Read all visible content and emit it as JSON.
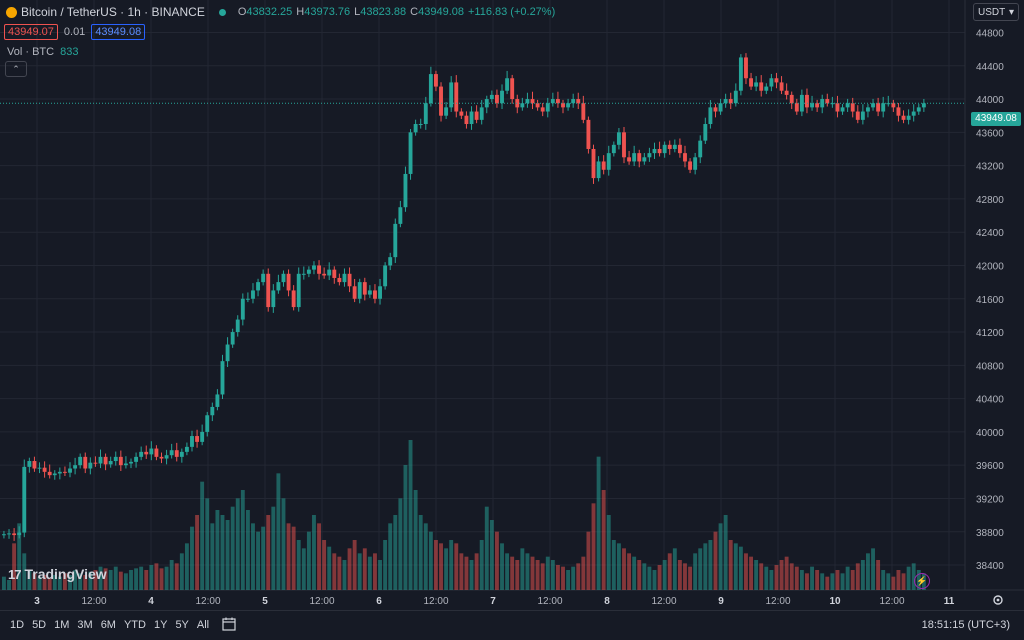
{
  "header": {
    "symbol": "Bitcoin / TetherUS · 1h · BINANCE",
    "o_label": "O",
    "o_value": "43832.25",
    "h_label": "H",
    "h_value": "43973.76",
    "l_label": "L",
    "l_value": "43823.88",
    "c_label": "C",
    "c_value": "43949.08",
    "change": "+116.83 (+0.27%)"
  },
  "trade": {
    "sell": "43949.07",
    "spread": "0.01",
    "buy": "43949.08"
  },
  "volume": {
    "label": "Vol · BTC",
    "value": "833"
  },
  "currency": {
    "label": "USDT",
    "caret": "▾"
  },
  "last_price": "43949.08",
  "branding": {
    "mark": "17",
    "name": "TradingView"
  },
  "ranges": [
    "1D",
    "5D",
    "1M",
    "3M",
    "6M",
    "YTD",
    "1Y",
    "5Y",
    "All"
  ],
  "clock": "18:51:15 (UTC+3)",
  "colors": {
    "up": "#26a69a",
    "down": "#ef5350",
    "bg": "#161a25",
    "grid": "#232733"
  },
  "chart_data": {
    "type": "candlestick",
    "y_ticks": [
      38400,
      38800,
      39200,
      39600,
      40000,
      40400,
      40800,
      41200,
      41600,
      42000,
      42400,
      42800,
      43200,
      43600,
      44000,
      44400,
      44800
    ],
    "ylim": [
      38100,
      44950
    ],
    "x_ticks": [
      "3",
      "12:00",
      "4",
      "12:00",
      "5",
      "12:00",
      "6",
      "12:00",
      "7",
      "12:00",
      "8",
      "12:00",
      "9",
      "12:00",
      "10",
      "12:00",
      "11"
    ],
    "close_series": [
      38770,
      38780,
      38760,
      38790,
      39580,
      39650,
      39560,
      39570,
      39520,
      39480,
      39500,
      39520,
      39510,
      39560,
      39600,
      39700,
      39560,
      39630,
      39620,
      39700,
      39610,
      39650,
      39700,
      39600,
      39620,
      39640,
      39700,
      39760,
      39730,
      39800,
      39700,
      39680,
      39720,
      39780,
      39700,
      39760,
      39820,
      39950,
      39880,
      40000,
      40200,
      40300,
      40450,
      40850,
      41050,
      41200,
      41350,
      41600,
      41600,
      41700,
      41800,
      41900,
      41500,
      41700,
      41800,
      41900,
      41700,
      41500,
      41900,
      41900,
      41950,
      42000,
      41900,
      41880,
      41950,
      41850,
      41800,
      41900,
      41750,
      41600,
      41800,
      41650,
      41700,
      41600,
      41750,
      42000,
      42100,
      42500,
      42700,
      43100,
      43600,
      43700,
      43700,
      43950,
      44300,
      44150,
      43800,
      43900,
      44200,
      43850,
      43800,
      43700,
      43850,
      43750,
      43900,
      44000,
      44050,
      43950,
      44100,
      44250,
      44000,
      43900,
      43950,
      44000,
      43950,
      43900,
      43850,
      43950,
      44000,
      43950,
      43900,
      43950,
      44000,
      43950,
      43750,
      43400,
      43050,
      43250,
      43150,
      43350,
      43450,
      43600,
      43300,
      43250,
      43350,
      43250,
      43300,
      43350,
      43400,
      43350,
      43450,
      43400,
      43450,
      43350,
      43250,
      43150,
      43300,
      43500,
      43700,
      43900,
      43850,
      43950,
      44000,
      43950,
      44100,
      44500,
      44250,
      44150,
      44200,
      44100,
      44150,
      44250,
      44200,
      44100,
      44050,
      43950,
      43850,
      44050,
      43900,
      43950,
      43900,
      44000,
      43950,
      43950,
      43850,
      43900,
      43950,
      43850,
      43750,
      43850,
      43900,
      43950,
      43850,
      43950,
      43950,
      43900,
      43800,
      43750,
      43800,
      43850,
      43900,
      43949
    ],
    "volume_series": [
      8,
      6,
      28,
      40,
      22,
      12,
      10,
      8,
      9,
      7,
      9,
      8,
      10,
      9,
      12,
      10,
      9,
      11,
      12,
      14,
      13,
      12,
      14,
      11,
      10,
      12,
      13,
      14,
      12,
      15,
      16,
      13,
      14,
      18,
      16,
      22,
      28,
      38,
      45,
      65,
      55,
      40,
      48,
      45,
      42,
      50,
      55,
      60,
      48,
      40,
      35,
      38,
      45,
      50,
      70,
      55,
      40,
      38,
      30,
      25,
      35,
      45,
      40,
      30,
      26,
      22,
      20,
      18,
      25,
      30,
      22,
      25,
      20,
      22,
      18,
      30,
      40,
      45,
      55,
      75,
      90,
      60,
      45,
      40,
      35,
      30,
      28,
      25,
      30,
      28,
      22,
      20,
      18,
      22,
      30,
      50,
      42,
      35,
      28,
      22,
      20,
      18,
      25,
      22,
      20,
      18,
      16,
      20,
      18,
      15,
      14,
      12,
      14,
      16,
      20,
      35,
      52,
      80,
      60,
      45,
      30,
      28,
      25,
      22,
      20,
      18,
      16,
      14,
      12,
      15,
      18,
      22,
      25,
      18,
      16,
      14,
      22,
      25,
      28,
      30,
      35,
      40,
      45,
      30,
      28,
      26,
      22,
      20,
      18,
      16,
      14,
      12,
      15,
      18,
      20,
      16,
      14,
      12,
      10,
      14,
      12,
      10,
      8,
      10,
      12,
      10,
      14,
      12,
      16,
      18,
      22,
      25,
      18,
      12,
      10,
      8,
      12,
      10,
      14,
      16,
      12,
      10
    ]
  }
}
